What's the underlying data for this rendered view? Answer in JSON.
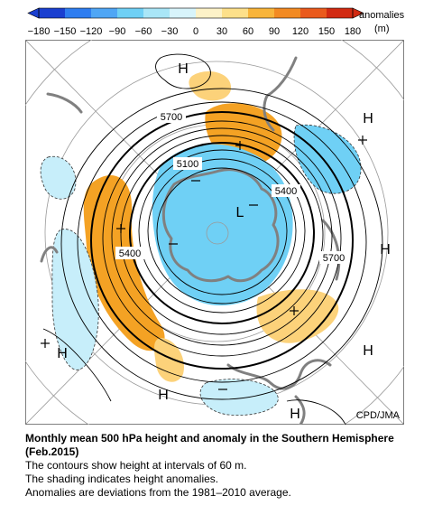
{
  "legend": {
    "title_line1": "anomalies",
    "title_line2": "(m)",
    "ticks": [
      "−180",
      "−150",
      "−120",
      "−90",
      "−60",
      "−30",
      "0",
      "30",
      "60",
      "90",
      "120",
      "150",
      "180"
    ],
    "colors": [
      "#1a3fd0",
      "#2e7df0",
      "#4fa6f5",
      "#6fd0f5",
      "#a9e6f7",
      "#d8f4fb",
      "#fdf2c8",
      "#fde08a",
      "#f8b43a",
      "#f28a22",
      "#ea5a1c",
      "#d22a12"
    ]
  },
  "map": {
    "contour_labels": [
      "5700",
      "5100",
      "5400",
      "5400",
      "5700"
    ],
    "high_labels": [
      "H",
      "H",
      "H",
      "H",
      "H",
      "H",
      "H"
    ],
    "low_labels": [
      "L"
    ],
    "credit": "CPD/JMA",
    "colors": {
      "positive": "#f4a224",
      "positive_light": "#fcd27a",
      "negative": "#6fd0f5",
      "negative_light": "#c7eefa",
      "coast": "#808080",
      "contour": "#000000"
    }
  },
  "caption": {
    "title": "Monthly mean 500 hPa height and anomaly in the Southern Hemisphere (Feb.2015)",
    "line1": "The contours show height at intervals of 60 m.",
    "line2": "The shading indicates height anomalies.",
    "line3": "Anomalies are deviations from the 1981–2010 average."
  }
}
